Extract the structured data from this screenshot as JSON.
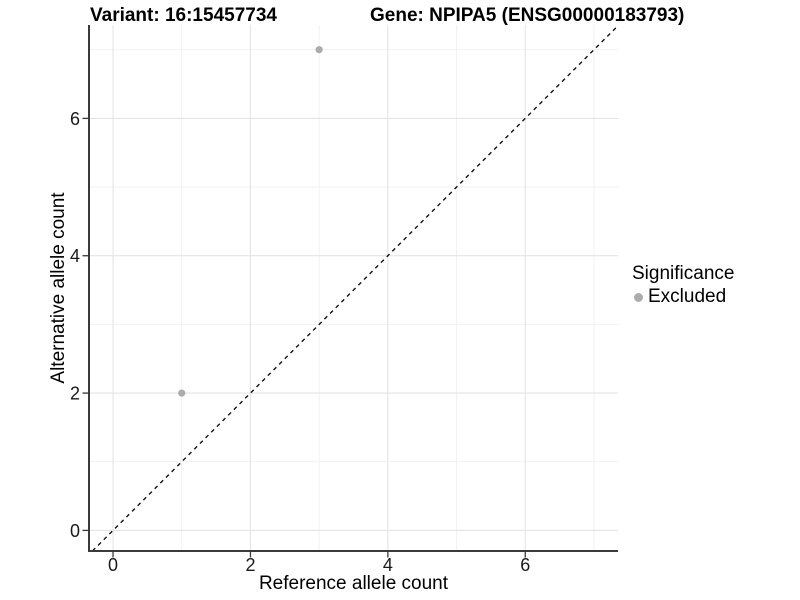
{
  "titles": {
    "variant": "Variant: 16:15457734",
    "gene": "Gene: NPIPA5 (ENSG00000183793)"
  },
  "legend": {
    "title": "Significance",
    "items": [
      {
        "label": "Excluded",
        "color": "#acacac"
      }
    ]
  },
  "chart_data": {
    "type": "scatter",
    "title": "Variant: 16:15457734   Gene: NPIPA5 (ENSG00000183793)",
    "xlabel": "Reference allele count",
    "ylabel": "Alternative allele count",
    "xlim": [
      -0.35,
      7.35
    ],
    "ylim": [
      -0.3,
      7.36
    ],
    "xticks": [
      0,
      2,
      4,
      6
    ],
    "yticks": [
      0,
      2,
      4,
      6
    ],
    "xminor": [
      1,
      3,
      5,
      7
    ],
    "yminor": [
      1,
      3,
      5,
      7
    ],
    "grid": true,
    "legend_position": "right",
    "series": [
      {
        "name": "Excluded",
        "color": "#acacac",
        "points": [
          [
            1,
            2
          ],
          [
            3,
            7
          ]
        ]
      }
    ],
    "reference_line": {
      "slope": 1,
      "intercept": 0,
      "style": "dashed",
      "color": "#111111"
    }
  },
  "colors": {
    "background": "#ffffff",
    "grid_major": "#e4e4e4",
    "grid_minor": "#f1f1f1",
    "axis_line": "#3a3a3a",
    "tick_text": "#1a1a1a",
    "point": "#acacac"
  }
}
